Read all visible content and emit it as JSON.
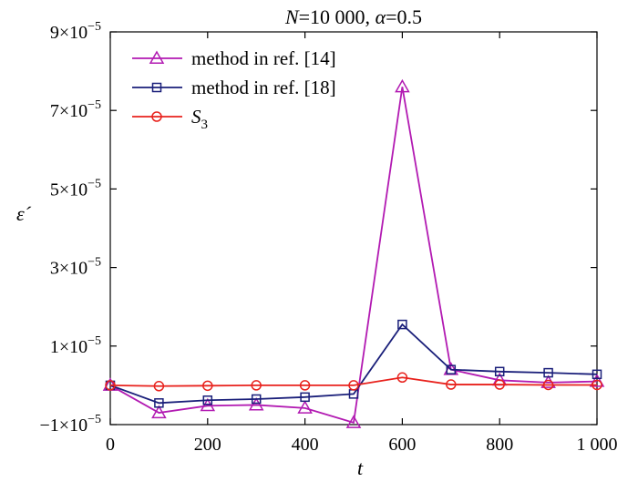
{
  "chart_data": {
    "type": "line",
    "title_parts": [
      "N",
      "=10 000, ",
      "α",
      "=0.5"
    ],
    "xlabel": "t",
    "ylabel": "ε´",
    "xlim": [
      0,
      1000
    ],
    "ylim": [
      -1e-05,
      9e-05
    ],
    "x_ticks": [
      0,
      200,
      400,
      600,
      800,
      1000
    ],
    "x_tick_labels": [
      "0",
      "200",
      "400",
      "600",
      "800",
      "1 000"
    ],
    "y_ticks": [
      -1e-05,
      1e-05,
      3e-05,
      5e-05,
      7e-05,
      9e-05
    ],
    "y_tick_labels": [
      {
        "sign": "−",
        "mant": "1",
        "exp": "−5"
      },
      {
        "sign": "",
        "mant": "1",
        "exp": "−5"
      },
      {
        "sign": "",
        "mant": "3",
        "exp": "−5"
      },
      {
        "sign": "",
        "mant": "5",
        "exp": "−5"
      },
      {
        "sign": "",
        "mant": "7",
        "exp": "−5"
      },
      {
        "sign": "",
        "mant": "9",
        "exp": "−5"
      }
    ],
    "grid": false,
    "legend_position": "top-left",
    "x": [
      0,
      100,
      200,
      300,
      400,
      500,
      600,
      700,
      800,
      900,
      1000
    ],
    "series": [
      {
        "name": "method in ref. [14]",
        "color": "#b21ab2",
        "marker": "triangle",
        "values": [
          0,
          -7e-06,
          -5.2e-06,
          -5e-06,
          -5.8e-06,
          -9.5e-06,
          7.6e-05,
          4e-06,
          1.3e-06,
          7e-07,
          1e-06
        ]
      },
      {
        "name": "method in ref. [18]",
        "color": "#1a1f7a",
        "marker": "square",
        "values": [
          0,
          -4.5e-06,
          -3.8e-06,
          -3.5e-06,
          -3e-06,
          -2.2e-06,
          1.55e-05,
          4e-06,
          3.5e-06,
          3.2e-06,
          2.8e-06
        ]
      },
      {
        "name_parts": [
          "S",
          "3"
        ],
        "color": "#e8221d",
        "marker": "circle",
        "values": [
          0,
          -2e-07,
          -1e-07,
          0,
          0,
          0,
          2e-06,
          2e-07,
          2e-07,
          1e-07,
          1e-07
        ]
      }
    ]
  }
}
